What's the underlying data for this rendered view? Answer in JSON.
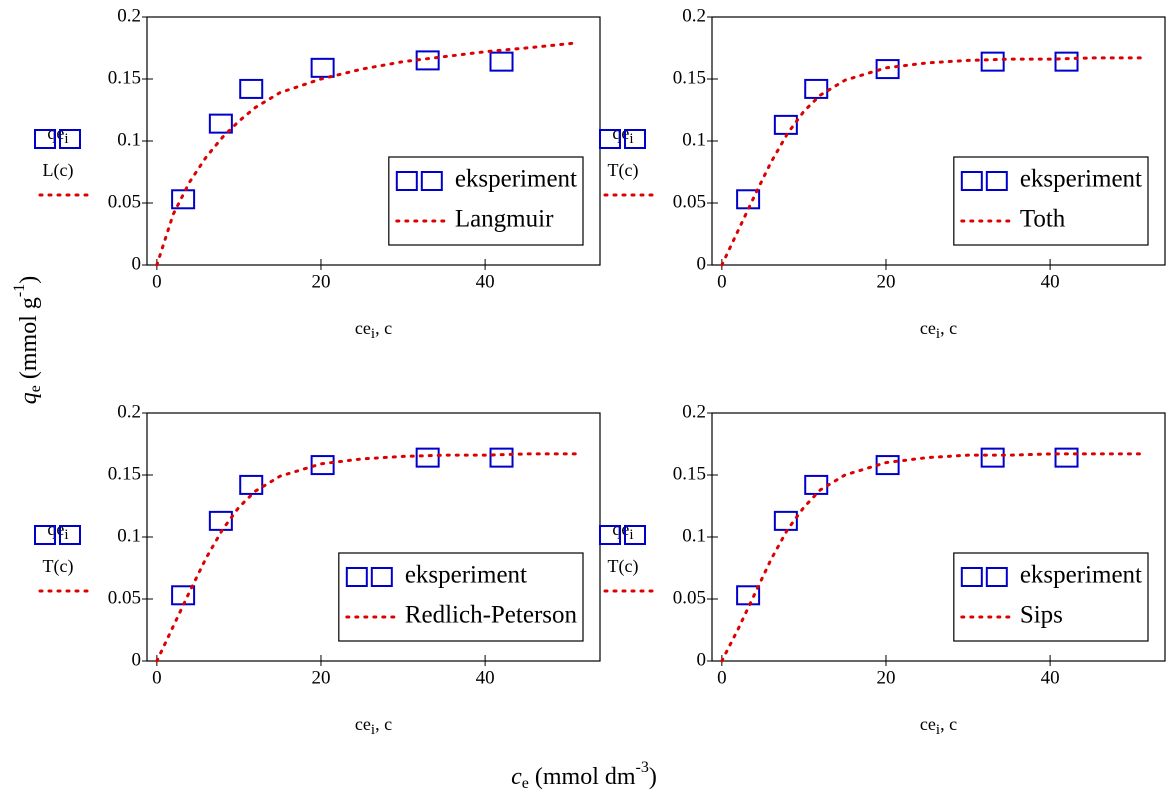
{
  "figure_labels": {
    "y": {
      "symbol": "q",
      "sub": "e",
      "unit": " (mmol g",
      "sup": "-1",
      "close": ")"
    },
    "x": {
      "symbol": "c",
      "sub": "e",
      "unit": " (mmol dm",
      "sup": "-3",
      "close": ")"
    }
  },
  "chart_data": [
    {
      "type": "line",
      "legend": "lower right",
      "xlim": [
        -1.2,
        54
      ],
      "xticks": [
        0,
        20,
        40
      ],
      "ylim": [
        0,
        0.2
      ],
      "yticks": [
        0,
        0.05,
        0.1,
        0.15,
        0.2
      ],
      "y_axis_label": {
        "top": "qe",
        "sub": "i",
        "bottom": "L(c)"
      },
      "x_axis_label": {
        "main": "ce",
        "sub": "i",
        "rest": ", c"
      },
      "series": [
        {
          "name": "eksperiment",
          "color": "#0000cc",
          "mode": "markers",
          "x": [
            3.2,
            7.8,
            11.5,
            20.2,
            33,
            42
          ],
          "values": [
            0.053,
            0.114,
            0.142,
            0.159,
            0.165,
            0.164
          ]
        },
        {
          "name": "Langmuir",
          "color": "#dd0000",
          "mode": "dotted-line",
          "x": [
            0,
            2,
            4,
            6,
            8,
            10,
            12,
            15,
            20,
            25,
            30,
            35,
            40,
            45,
            51
          ],
          "values": [
            0,
            0.041,
            0.067,
            0.087,
            0.103,
            0.116,
            0.127,
            0.139,
            0.15,
            0.158,
            0.164,
            0.168,
            0.172,
            0.175,
            0.179
          ]
        }
      ]
    },
    {
      "type": "line",
      "legend": "lower right",
      "xlim": [
        -1.2,
        54
      ],
      "xticks": [
        0,
        20,
        40
      ],
      "ylim": [
        0,
        0.2
      ],
      "yticks": [
        0,
        0.05,
        0.1,
        0.15,
        0.2
      ],
      "y_axis_label": {
        "top": "qe",
        "sub": "i",
        "bottom": "T(c)"
      },
      "x_axis_label": {
        "main": "ce",
        "sub": "i",
        "rest": ", c"
      },
      "series": [
        {
          "name": "eksperiment",
          "color": "#0000cc",
          "mode": "markers",
          "x": [
            3.2,
            7.8,
            11.5,
            20.2,
            33,
            42
          ],
          "values": [
            0.053,
            0.113,
            0.142,
            0.158,
            0.164,
            0.164
          ]
        },
        {
          "name": "Toth",
          "color": "#dd0000",
          "mode": "dotted-line",
          "x": [
            0,
            2,
            4,
            6,
            8,
            10,
            12,
            15,
            20,
            25,
            30,
            35,
            40,
            45,
            51
          ],
          "values": [
            0,
            0.028,
            0.056,
            0.083,
            0.106,
            0.124,
            0.137,
            0.149,
            0.159,
            0.163,
            0.165,
            0.166,
            0.166,
            0.167,
            0.167
          ]
        }
      ]
    },
    {
      "type": "line",
      "legend": "lower right",
      "xlim": [
        -1.2,
        54
      ],
      "xticks": [
        0,
        20,
        40
      ],
      "ylim": [
        0,
        0.2
      ],
      "yticks": [
        0,
        0.05,
        0.1,
        0.15,
        0.2
      ],
      "y_axis_label": {
        "top": "qe",
        "sub": "i",
        "bottom": "T(c)"
      },
      "x_axis_label": {
        "main": "ce",
        "sub": "i",
        "rest": ", c"
      },
      "series": [
        {
          "name": "eksperiment",
          "color": "#0000cc",
          "mode": "markers",
          "x": [
            3.2,
            7.8,
            11.5,
            20.2,
            33,
            42
          ],
          "values": [
            0.053,
            0.113,
            0.142,
            0.158,
            0.164,
            0.164
          ]
        },
        {
          "name": "Redlich-Peterson",
          "color": "#dd0000",
          "mode": "dotted-line",
          "x": [
            0,
            2,
            4,
            6,
            8,
            10,
            12,
            15,
            20,
            25,
            30,
            35,
            40,
            45,
            51
          ],
          "values": [
            0,
            0.028,
            0.056,
            0.083,
            0.106,
            0.124,
            0.137,
            0.149,
            0.159,
            0.163,
            0.165,
            0.166,
            0.166,
            0.167,
            0.167
          ]
        }
      ]
    },
    {
      "type": "line",
      "legend": "lower right",
      "xlim": [
        -1.2,
        54
      ],
      "xticks": [
        0,
        20,
        40
      ],
      "ylim": [
        0,
        0.2
      ],
      "yticks": [
        0,
        0.05,
        0.1,
        0.15,
        0.2
      ],
      "y_axis_label": {
        "top": "qe",
        "sub": "i",
        "bottom": "T(c)"
      },
      "x_axis_label": {
        "main": "ce",
        "sub": "i",
        "rest": ", c"
      },
      "series": [
        {
          "name": "eksperiment",
          "color": "#0000cc",
          "mode": "markers",
          "x": [
            3.2,
            7.8,
            11.5,
            20.2,
            33,
            42
          ],
          "values": [
            0.053,
            0.113,
            0.142,
            0.158,
            0.164,
            0.164
          ]
        },
        {
          "name": "Sips",
          "color": "#dd0000",
          "mode": "dotted-line",
          "x": [
            0,
            2,
            4,
            6,
            8,
            10,
            12,
            15,
            20,
            25,
            30,
            35,
            40,
            45,
            51
          ],
          "values": [
            0,
            0.026,
            0.054,
            0.082,
            0.106,
            0.124,
            0.138,
            0.15,
            0.16,
            0.164,
            0.166,
            0.166,
            0.167,
            0.167,
            0.167
          ]
        }
      ]
    }
  ]
}
